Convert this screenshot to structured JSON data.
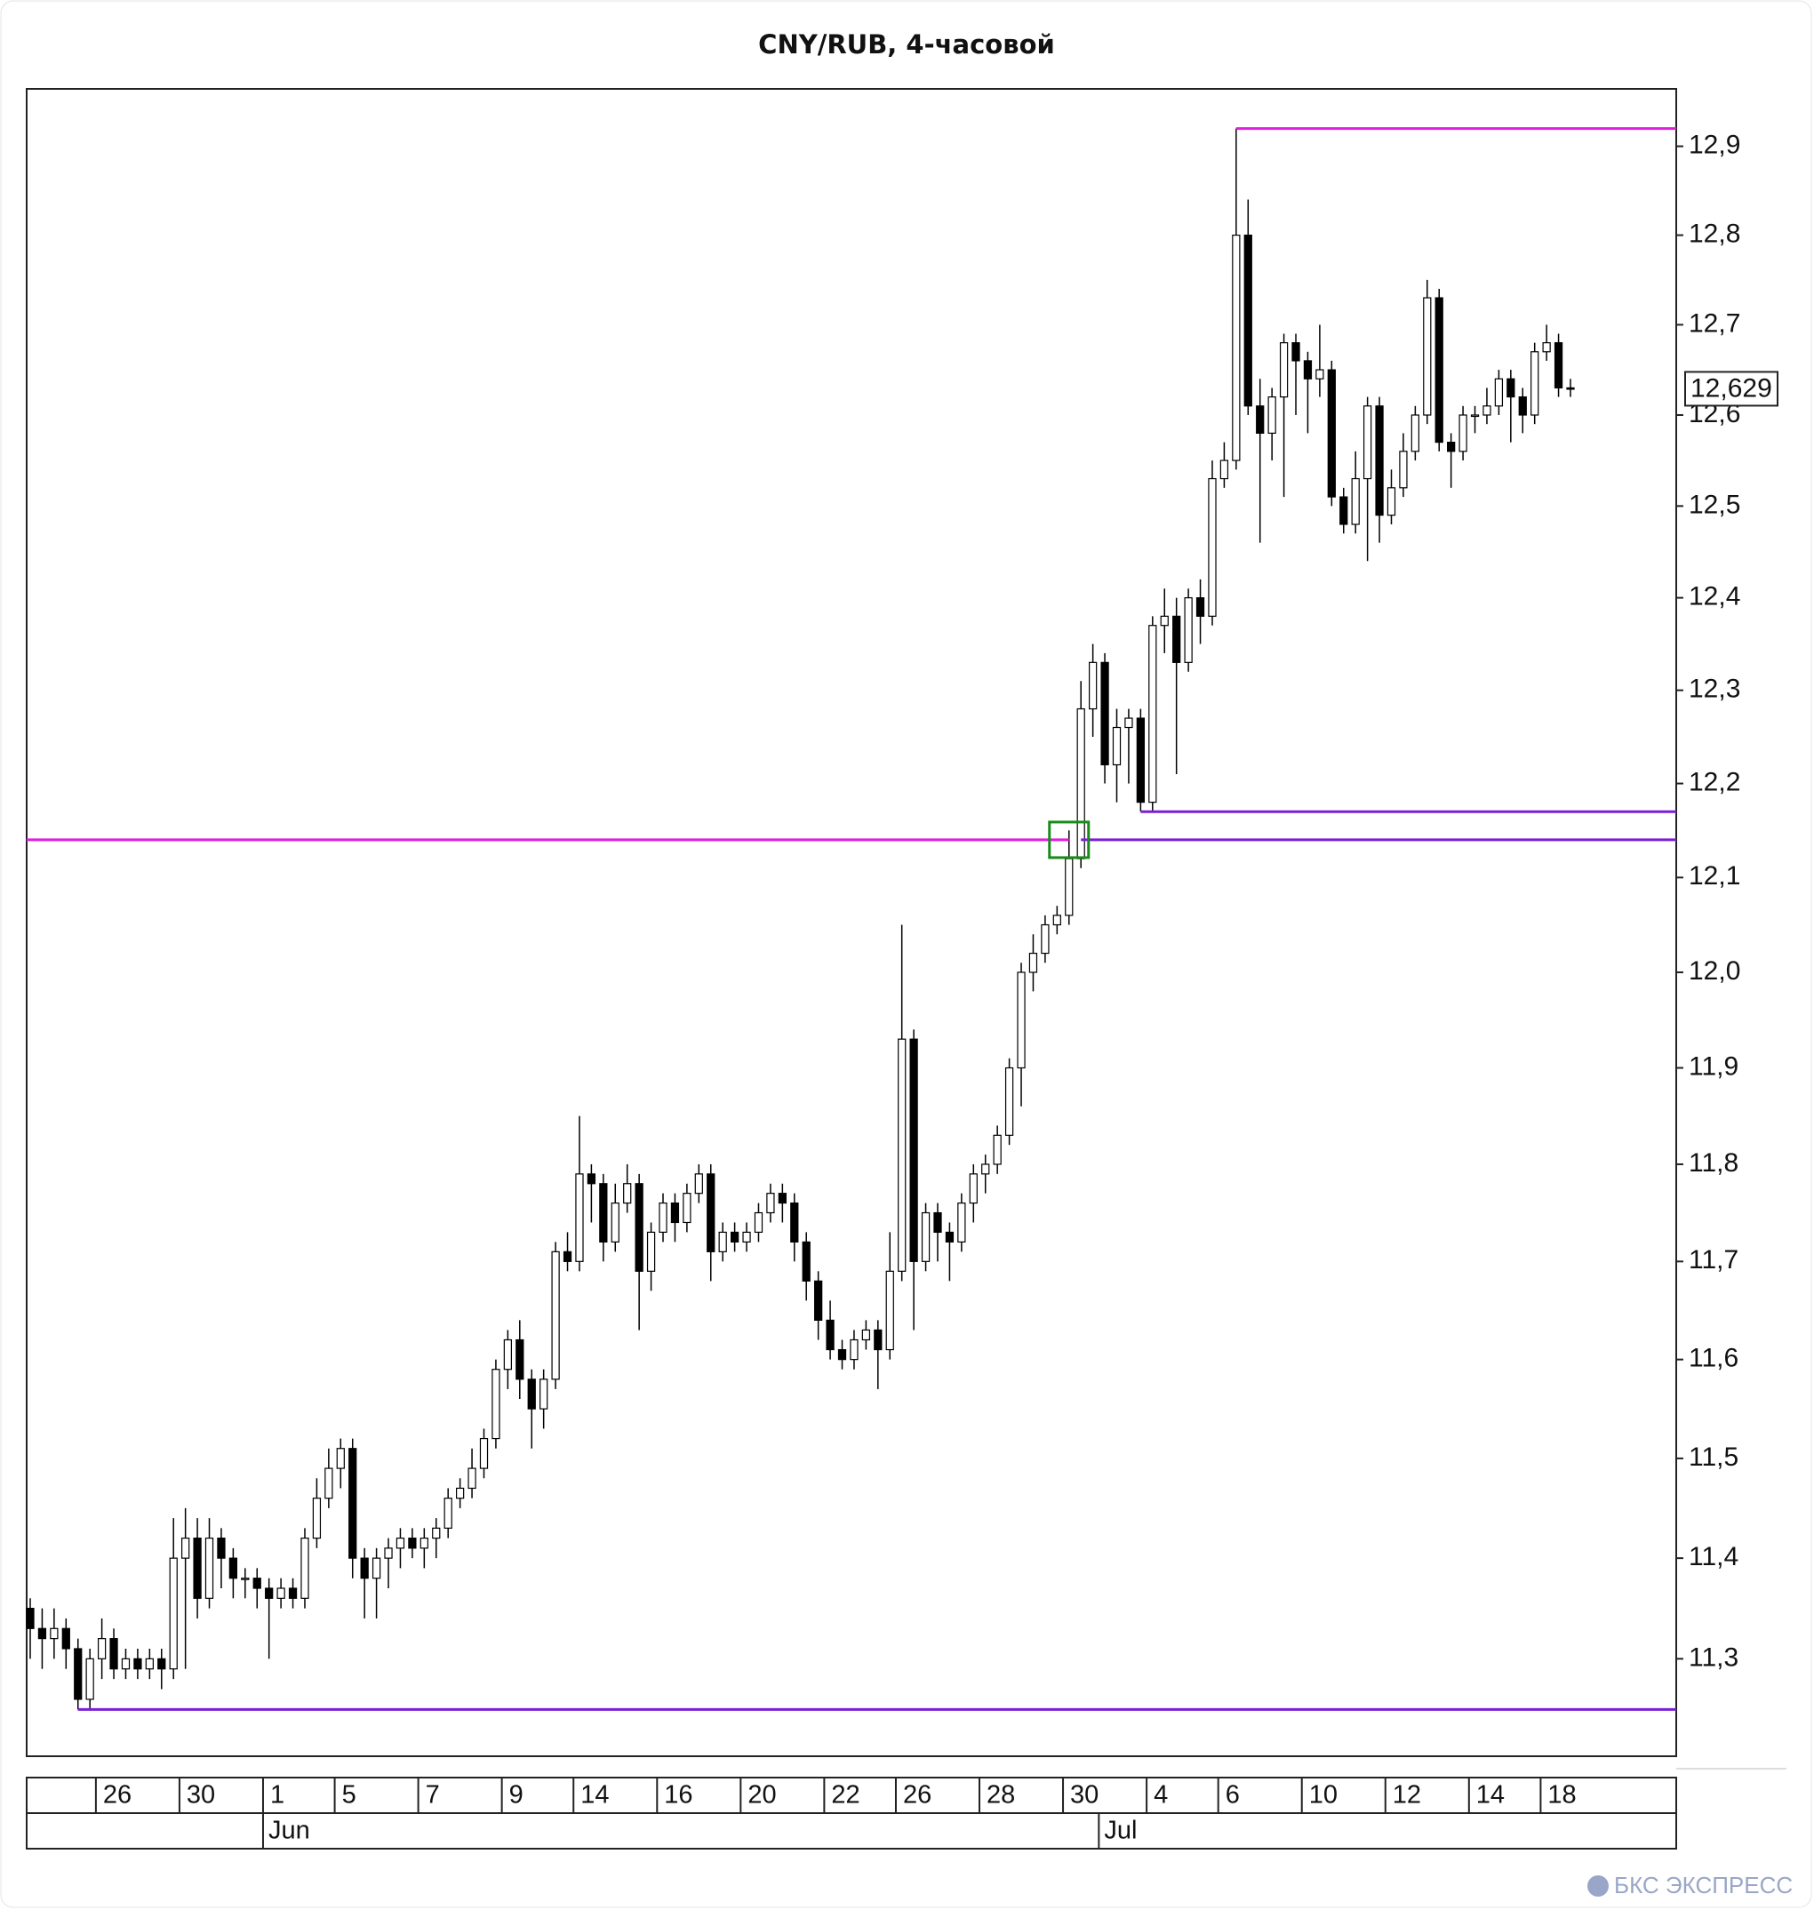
{
  "chart_data": {
    "type": "candlestick",
    "title": "CNY/RUB, 4-часовой",
    "log_scale": true,
    "ylim": [
      11.204,
      12.965
    ],
    "yticks": [
      {
        "value": 11.3,
        "label": "11,3"
      },
      {
        "value": 11.4,
        "label": "11,4"
      },
      {
        "value": 11.5,
        "label": "11,5"
      },
      {
        "value": 11.6,
        "label": "11,6"
      },
      {
        "value": 11.7,
        "label": "11,7"
      },
      {
        "value": 11.8,
        "label": "11,8"
      },
      {
        "value": 11.9,
        "label": "11,9"
      },
      {
        "value": 12.0,
        "label": "12,0"
      },
      {
        "value": 12.1,
        "label": "12,1"
      },
      {
        "value": 12.2,
        "label": "12,2"
      },
      {
        "value": 12.3,
        "label": "12,3"
      },
      {
        "value": 12.4,
        "label": "12,4"
      },
      {
        "value": 12.5,
        "label": "12,5"
      },
      {
        "value": 12.6,
        "label": "12,6"
      },
      {
        "value": 12.7,
        "label": "12,7"
      },
      {
        "value": 12.8,
        "label": "12,8"
      },
      {
        "value": 12.9,
        "label": "12,9"
      }
    ],
    "up_color": "#ffffff",
    "down_color": "#000000",
    "ohlc": [
      [
        11.35,
        11.36,
        11.3,
        11.33
      ],
      [
        11.33,
        11.35,
        11.29,
        11.32
      ],
      [
        11.32,
        11.35,
        11.3,
        11.33
      ],
      [
        11.33,
        11.34,
        11.29,
        11.31
      ],
      [
        11.31,
        11.32,
        11.25,
        11.26
      ],
      [
        11.26,
        11.31,
        11.25,
        11.3
      ],
      [
        11.3,
        11.34,
        11.28,
        11.32
      ],
      [
        11.32,
        11.33,
        11.28,
        11.29
      ],
      [
        11.29,
        11.31,
        11.28,
        11.3
      ],
      [
        11.3,
        11.31,
        11.28,
        11.29
      ],
      [
        11.29,
        11.31,
        11.28,
        11.3
      ],
      [
        11.3,
        11.31,
        11.27,
        11.29
      ],
      [
        11.29,
        11.44,
        11.28,
        11.4
      ],
      [
        11.4,
        11.45,
        11.29,
        11.42
      ],
      [
        11.42,
        11.44,
        11.34,
        11.36
      ],
      [
        11.36,
        11.44,
        11.35,
        11.42
      ],
      [
        11.42,
        11.43,
        11.37,
        11.4
      ],
      [
        11.4,
        11.41,
        11.36,
        11.38
      ],
      [
        11.38,
        11.39,
        11.36,
        11.38
      ],
      [
        11.38,
        11.39,
        11.35,
        11.37
      ],
      [
        11.37,
        11.38,
        11.3,
        11.36
      ],
      [
        11.36,
        11.38,
        11.35,
        11.37
      ],
      [
        11.37,
        11.38,
        11.35,
        11.36
      ],
      [
        11.36,
        11.43,
        11.35,
        11.42
      ],
      [
        11.42,
        11.48,
        11.41,
        11.46
      ],
      [
        11.46,
        11.51,
        11.45,
        11.49
      ],
      [
        11.49,
        11.52,
        11.47,
        11.51
      ],
      [
        11.51,
        11.52,
        11.38,
        11.4
      ],
      [
        11.4,
        11.41,
        11.34,
        11.38
      ],
      [
        11.38,
        11.41,
        11.34,
        11.4
      ],
      [
        11.4,
        11.42,
        11.37,
        11.41
      ],
      [
        11.41,
        11.43,
        11.39,
        11.42
      ],
      [
        11.42,
        11.43,
        11.4,
        11.41
      ],
      [
        11.41,
        11.43,
        11.39,
        11.42
      ],
      [
        11.42,
        11.44,
        11.4,
        11.43
      ],
      [
        11.43,
        11.47,
        11.42,
        11.46
      ],
      [
        11.46,
        11.48,
        11.45,
        11.47
      ],
      [
        11.47,
        11.51,
        11.46,
        11.49
      ],
      [
        11.49,
        11.53,
        11.48,
        11.52
      ],
      [
        11.52,
        11.6,
        11.51,
        11.59
      ],
      [
        11.59,
        11.63,
        11.57,
        11.62
      ],
      [
        11.62,
        11.64,
        11.56,
        11.58
      ],
      [
        11.58,
        11.59,
        11.51,
        11.55
      ],
      [
        11.55,
        11.59,
        11.53,
        11.58
      ],
      [
        11.58,
        11.72,
        11.57,
        11.71
      ],
      [
        11.71,
        11.73,
        11.69,
        11.7
      ],
      [
        11.7,
        11.85,
        11.69,
        11.79
      ],
      [
        11.79,
        11.8,
        11.74,
        11.78
      ],
      [
        11.78,
        11.79,
        11.7,
        11.72
      ],
      [
        11.72,
        11.78,
        11.71,
        11.76
      ],
      [
        11.76,
        11.8,
        11.75,
        11.78
      ],
      [
        11.78,
        11.79,
        11.63,
        11.69
      ],
      [
        11.69,
        11.74,
        11.67,
        11.73
      ],
      [
        11.73,
        11.77,
        11.72,
        11.76
      ],
      [
        11.76,
        11.77,
        11.72,
        11.74
      ],
      [
        11.74,
        11.78,
        11.73,
        11.77
      ],
      [
        11.77,
        11.8,
        11.76,
        11.79
      ],
      [
        11.79,
        11.8,
        11.68,
        11.71
      ],
      [
        11.71,
        11.74,
        11.7,
        11.73
      ],
      [
        11.73,
        11.74,
        11.71,
        11.72
      ],
      [
        11.72,
        11.74,
        11.71,
        11.73
      ],
      [
        11.73,
        11.76,
        11.72,
        11.75
      ],
      [
        11.75,
        11.78,
        11.74,
        11.77
      ],
      [
        11.77,
        11.78,
        11.74,
        11.76
      ],
      [
        11.76,
        11.77,
        11.7,
        11.72
      ],
      [
        11.72,
        11.73,
        11.66,
        11.68
      ],
      [
        11.68,
        11.69,
        11.62,
        11.64
      ],
      [
        11.64,
        11.66,
        11.6,
        11.61
      ],
      [
        11.61,
        11.62,
        11.59,
        11.6
      ],
      [
        11.6,
        11.63,
        11.59,
        11.62
      ],
      [
        11.62,
        11.64,
        11.61,
        11.63
      ],
      [
        11.63,
        11.64,
        11.57,
        11.61
      ],
      [
        11.61,
        11.73,
        11.6,
        11.69
      ],
      [
        11.69,
        12.05,
        11.68,
        11.93
      ],
      [
        11.93,
        11.94,
        11.63,
        11.7
      ],
      [
        11.7,
        11.76,
        11.69,
        11.75
      ],
      [
        11.75,
        11.76,
        11.7,
        11.73
      ],
      [
        11.73,
        11.74,
        11.68,
        11.72
      ],
      [
        11.72,
        11.77,
        11.71,
        11.76
      ],
      [
        11.76,
        11.8,
        11.74,
        11.79
      ],
      [
        11.79,
        11.81,
        11.77,
        11.8
      ],
      [
        11.8,
        11.84,
        11.79,
        11.83
      ],
      [
        11.83,
        11.91,
        11.82,
        11.9
      ],
      [
        11.9,
        12.01,
        11.86,
        12.0
      ],
      [
        12.0,
        12.04,
        11.98,
        12.02
      ],
      [
        12.02,
        12.06,
        12.01,
        12.05
      ],
      [
        12.05,
        12.07,
        12.04,
        12.06
      ],
      [
        12.06,
        12.15,
        12.05,
        12.12
      ],
      [
        12.12,
        12.31,
        12.11,
        12.28
      ],
      [
        12.28,
        12.35,
        12.25,
        12.33
      ],
      [
        12.33,
        12.34,
        12.2,
        12.22
      ],
      [
        12.22,
        12.28,
        12.18,
        12.26
      ],
      [
        12.26,
        12.28,
        12.2,
        12.27
      ],
      [
        12.27,
        12.28,
        12.17,
        12.18
      ],
      [
        12.18,
        12.38,
        12.17,
        12.37
      ],
      [
        12.37,
        12.41,
        12.34,
        12.38
      ],
      [
        12.38,
        12.4,
        12.21,
        12.33
      ],
      [
        12.33,
        12.41,
        12.32,
        12.4
      ],
      [
        12.4,
        12.42,
        12.35,
        12.38
      ],
      [
        12.38,
        12.55,
        12.37,
        12.53
      ],
      [
        12.53,
        12.57,
        12.52,
        12.55
      ],
      [
        12.55,
        12.92,
        12.54,
        12.8
      ],
      [
        12.8,
        12.84,
        12.6,
        12.61
      ],
      [
        12.61,
        12.64,
        12.46,
        12.58
      ],
      [
        12.58,
        12.63,
        12.55,
        12.62
      ],
      [
        12.62,
        12.69,
        12.51,
        12.68
      ],
      [
        12.68,
        12.69,
        12.6,
        12.66
      ],
      [
        12.66,
        12.67,
        12.58,
        12.64
      ],
      [
        12.64,
        12.7,
        12.62,
        12.65
      ],
      [
        12.65,
        12.66,
        12.5,
        12.51
      ],
      [
        12.51,
        12.52,
        12.47,
        12.48
      ],
      [
        12.48,
        12.56,
        12.47,
        12.53
      ],
      [
        12.53,
        12.62,
        12.44,
        12.61
      ],
      [
        12.61,
        12.62,
        12.46,
        12.49
      ],
      [
        12.49,
        12.54,
        12.48,
        12.52
      ],
      [
        12.52,
        12.58,
        12.51,
        12.56
      ],
      [
        12.56,
        12.61,
        12.55,
        12.6
      ],
      [
        12.6,
        12.75,
        12.59,
        12.73
      ],
      [
        12.73,
        12.74,
        12.56,
        12.57
      ],
      [
        12.57,
        12.58,
        12.52,
        12.56
      ],
      [
        12.56,
        12.61,
        12.55,
        12.6
      ],
      [
        12.6,
        12.61,
        12.58,
        12.6
      ],
      [
        12.6,
        12.63,
        12.59,
        12.61
      ],
      [
        12.61,
        12.65,
        12.6,
        12.64
      ],
      [
        12.64,
        12.65,
        12.57,
        12.62
      ],
      [
        12.62,
        12.63,
        12.58,
        12.6
      ],
      [
        12.6,
        12.68,
        12.59,
        12.67
      ],
      [
        12.67,
        12.7,
        12.66,
        12.68
      ],
      [
        12.68,
        12.69,
        12.62,
        12.63
      ],
      [
        12.63,
        12.64,
        12.62,
        12.629
      ]
    ],
    "categories": [
      null,
      null,
      null,
      null,
      null,
      null,
      "26",
      null,
      null,
      null,
      null,
      null,
      null,
      "30",
      null,
      null,
      null,
      null,
      null,
      null,
      "1",
      null,
      null,
      null,
      null,
      null,
      "5",
      null,
      null,
      null,
      null,
      null,
      null,
      "7",
      null,
      null,
      null,
      null,
      null,
      null,
      "9",
      null,
      null,
      null,
      null,
      null,
      "14",
      null,
      null,
      null,
      null,
      null,
      null,
      "16",
      null,
      null,
      null,
      null,
      null,
      null,
      "20",
      null,
      null,
      null,
      null,
      null,
      null,
      "22",
      null,
      null,
      null,
      null,
      null,
      "26",
      null,
      null,
      null,
      null,
      null,
      null,
      "28",
      null,
      null,
      null,
      null,
      null,
      null,
      "30",
      null,
      null,
      null,
      null,
      null,
      null,
      "4",
      null,
      null,
      null,
      null,
      null,
      "6",
      null,
      null,
      null,
      null,
      null,
      null,
      "10",
      null,
      null,
      null,
      null,
      null,
      null,
      "12",
      null,
      null,
      null,
      null,
      null,
      null,
      "14",
      null,
      null,
      null,
      null,
      null,
      "18",
      null,
      null
    ],
    "months": [
      null,
      null,
      null,
      null,
      null,
      null,
      null,
      null,
      null,
      null,
      null,
      null,
      null,
      null,
      null,
      null,
      null,
      null,
      null,
      null,
      "Jun",
      null,
      null,
      null,
      null,
      null,
      null,
      null,
      null,
      null,
      null,
      null,
      null,
      null,
      null,
      null,
      null,
      null,
      null,
      null,
      null,
      null,
      null,
      null,
      null,
      null,
      null,
      null,
      null,
      null,
      null,
      null,
      null,
      null,
      null,
      null,
      null,
      null,
      null,
      null,
      null,
      null,
      null,
      null,
      null,
      null,
      null,
      null,
      null,
      null,
      null,
      null,
      null,
      null,
      null,
      null,
      null,
      null,
      null,
      null,
      null,
      null,
      null,
      null,
      null,
      null,
      null,
      null,
      null,
      null,
      "Jul",
      null,
      null,
      null,
      null,
      null,
      null,
      null,
      null,
      null,
      null,
      null,
      null,
      null,
      null,
      null,
      null,
      null,
      null,
      null,
      null,
      null,
      null,
      null,
      null,
      null,
      null,
      null,
      null,
      null,
      null,
      null,
      null,
      null,
      null,
      null,
      null,
      null,
      null
    ],
    "levels": [
      {
        "value": 12.92,
        "color": "#e01ee0",
        "start": 101
      },
      {
        "value": 12.14,
        "color": "#e01ee0",
        "start": 0,
        "end": 87
      },
      {
        "value": 12.17,
        "color": "#7a1fd6",
        "start": 93
      },
      {
        "value": 12.14,
        "color": "#7a1fd6",
        "start": 88
      },
      {
        "value": 11.25,
        "color": "#7a1fd6",
        "start": 4
      }
    ],
    "marker": {
      "index": 87,
      "value": 12.14,
      "color": "#1a8a1a"
    },
    "last": {
      "value": 12.629,
      "label": "12,629"
    },
    "watermark": "БКС ЭКСПРЕСС"
  }
}
